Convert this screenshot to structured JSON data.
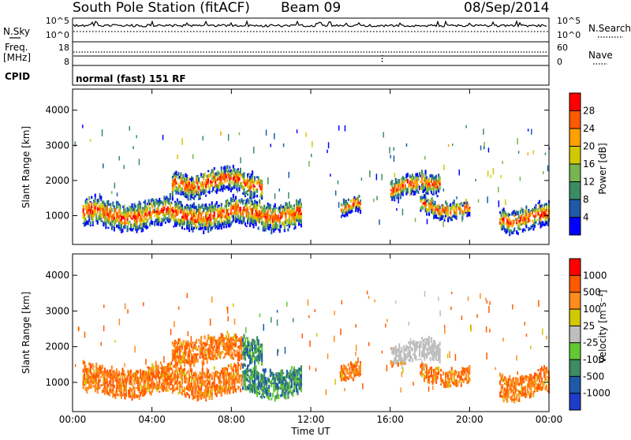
{
  "header": {
    "station": "South Pole Station (fitACF)",
    "beam": "Beam 09",
    "date": "08/Sep/2014"
  },
  "summary": {
    "left_nsky": "N.Sky",
    "left_freq_line1": "Freq.",
    "left_freq_line2": "[MHz]",
    "left_cpid": "CPID",
    "right_nsearch": "N.Search",
    "right_nave": "Nave",
    "nsky_ticks": [
      "10^5",
      "10^0"
    ],
    "freq_ticks": [
      "18",
      "8"
    ],
    "nave_ticks": [
      "60",
      "0"
    ],
    "nsearch_ticks": [
      "10^5",
      "10^0"
    ],
    "cpid_text": "normal (fast) 151 RF"
  },
  "colors": {
    "power": [
      "#0000ff",
      "#1e5aa8",
      "#3c8c64",
      "#78b450",
      "#d2c800",
      "#ffa000",
      "#ff5a00",
      "#ff0000"
    ],
    "velocity": [
      "#ff0000",
      "#ff5a00",
      "#ff8c1e",
      "#d2c800",
      "#bebebe",
      "#64c832",
      "#3c8c64",
      "#1e5aa8",
      "#1e3cc8"
    ]
  },
  "chart_data": [
    {
      "type": "heatmap",
      "name": "power",
      "ylabel": "Slant Range [km]",
      "ylim": [
        180,
        4600
      ],
      "yticks": [
        1000,
        2000,
        3000,
        4000
      ],
      "x_ticks": [
        "00:00",
        "04:00",
        "08:00",
        "12:00",
        "16:00",
        "20:00",
        "00:00"
      ],
      "colorbar": {
        "label": "Power [dB]",
        "ticks": [
          "28",
          "24",
          "20",
          "16",
          "12",
          "8",
          "4"
        ],
        "range": [
          0,
          32
        ]
      },
      "echo_bands": [
        {
          "start": "00:30",
          "end": "11:30",
          "center_km": 1000,
          "width_km": 700
        },
        {
          "start": "05:00",
          "end": "09:30",
          "center_km": 1900,
          "width_km": 600
        },
        {
          "start": "13:30",
          "end": "14:30",
          "center_km": 1200,
          "width_km": 400
        },
        {
          "start": "16:00",
          "end": "18:30",
          "center_km": 1800,
          "width_km": 500
        },
        {
          "start": "17:30",
          "end": "20:00",
          "center_km": 1200,
          "width_km": 400
        },
        {
          "start": "21:30",
          "end": "24:00",
          "center_km": 900,
          "width_km": 600
        }
      ]
    },
    {
      "type": "heatmap",
      "name": "velocity",
      "ylabel": "Slant Range [km]",
      "xlabel": "Time UT",
      "ylim": [
        180,
        4600
      ],
      "yticks": [
        1000,
        2000,
        3000,
        4000
      ],
      "x_ticks": [
        "00:00",
        "04:00",
        "08:00",
        "12:00",
        "16:00",
        "20:00",
        "00:00"
      ],
      "colorbar": {
        "label": "Velocity [m s⁻¹]",
        "ticks": [
          "1000",
          "500",
          "100",
          "25",
          "-25",
          "-100",
          "-500",
          "-1000"
        ],
        "range": [
          -1000,
          1000
        ]
      },
      "echo_bands": [
        {
          "start": "00:30",
          "end": "11:30",
          "center_km": 1000,
          "width_km": 700
        },
        {
          "start": "05:00",
          "end": "09:30",
          "center_km": 1900,
          "width_km": 600
        },
        {
          "start": "13:30",
          "end": "14:30",
          "center_km": 1200,
          "width_km": 400
        },
        {
          "start": "16:00",
          "end": "18:30",
          "center_km": 1800,
          "width_km": 500
        },
        {
          "start": "17:30",
          "end": "20:00",
          "center_km": 1200,
          "width_km": 400
        },
        {
          "start": "21:30",
          "end": "24:00",
          "center_km": 900,
          "width_km": 600
        }
      ]
    }
  ]
}
